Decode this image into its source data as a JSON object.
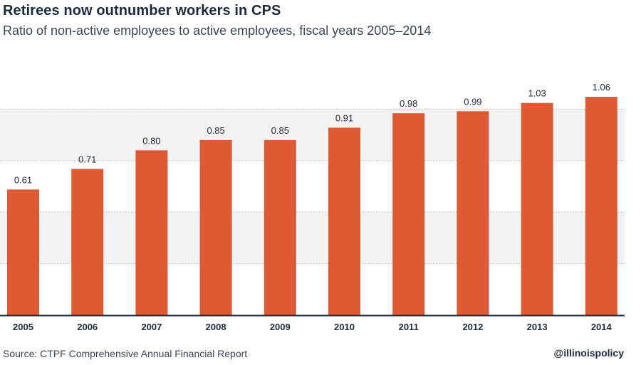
{
  "header": {
    "title": "Retirees now outnumber workers in CPS",
    "subtitle": "Ratio of non-active employees to active employees, fiscal years 2005–2014"
  },
  "footer": {
    "source": "Source: CTPF Comprehensive Annual Financial Report",
    "handle": "@illinoispolicy"
  },
  "colors": {
    "bar": "#dd5a35",
    "band": "#f3f3f3",
    "grid": "#bdbdbd",
    "axis": "#1c2b3c",
    "text": "#1c2b3c"
  },
  "chart_data": {
    "type": "bar",
    "title": "Retirees now outnumber workers in CPS",
    "subtitle": "Ratio of non-active employees to active employees, fiscal years 2005–2014",
    "xlabel": "",
    "ylabel": "",
    "categories": [
      "2005",
      "2006",
      "2007",
      "2008",
      "2009",
      "2010",
      "2011",
      "2012",
      "2013",
      "2014"
    ],
    "values": [
      0.61,
      0.71,
      0.8,
      0.85,
      0.85,
      0.91,
      0.98,
      0.99,
      1.03,
      1.06
    ],
    "data_labels": [
      "0.61",
      "0.71",
      "0.80",
      "0.85",
      "0.85",
      "0.91",
      "0.98",
      "0.99",
      "1.03",
      "1.06"
    ],
    "ylim": [
      0,
      1.25
    ],
    "gridlines": [
      0.25,
      0.5,
      0.75,
      1.0
    ],
    "grid": true,
    "y_tick_labels_shown": false,
    "legend": "none"
  }
}
